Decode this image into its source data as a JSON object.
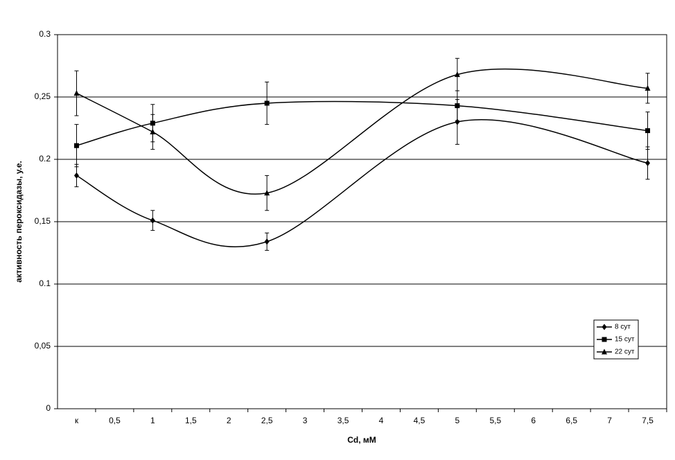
{
  "chart_data": {
    "type": "line",
    "x_label": "Cd, мМ",
    "y_label": "активность пероксидазы, у.е.",
    "x": [
      0,
      1,
      2.5,
      5,
      7.5
    ],
    "xlim": [
      -0.25,
      7.75
    ],
    "xticks": [
      {
        "value": 0,
        "label": "к"
      },
      {
        "value": 0.5,
        "label": "0,5"
      },
      1,
      {
        "value": 1.5,
        "label": "1,5"
      },
      2,
      {
        "value": 2.5,
        "label": "2,5"
      },
      3,
      {
        "value": 3.5,
        "label": "3,5"
      },
      4,
      {
        "value": 4.5,
        "label": "4,5"
      },
      5,
      {
        "value": 5.5,
        "label": "5,5"
      },
      6,
      {
        "value": 6.5,
        "label": "6,5"
      },
      7,
      {
        "value": 7.5,
        "label": "7,5"
      }
    ],
    "ylim": [
      0,
      0.3
    ],
    "yticks": [
      0,
      {
        "value": 0.05,
        "label": "0,05"
      },
      {
        "value": 0.1,
        "label": "0.1"
      },
      {
        "value": 0.15,
        "label": "0,15"
      },
      {
        "value": 0.2,
        "label": "0.2"
      },
      {
        "value": 0.25,
        "label": "0,25"
      },
      {
        "value": 0.3,
        "label": "0.3"
      }
    ],
    "grid": true,
    "smooth": true,
    "legend": "lower right",
    "series": [
      {
        "name": "8 сут",
        "marker": "diamond",
        "color": "#000000",
        "values": [
          0.187,
          0.151,
          0.134,
          0.23,
          0.197
        ],
        "errors": [
          0.009,
          0.008,
          0.007,
          0.018,
          0.013
        ]
      },
      {
        "name": "15 сут",
        "marker": "square",
        "color": "#000000",
        "values": [
          0.211,
          0.229,
          0.245,
          0.243,
          0.223
        ],
        "errors": [
          0.017,
          0.015,
          0.017,
          0.012,
          0.015
        ]
      },
      {
        "name": "22 сут",
        "marker": "triangle",
        "color": "#000000",
        "values": [
          0.253,
          0.222,
          0.173,
          0.268,
          0.257
        ],
        "errors": [
          0.018,
          0.014,
          0.014,
          0.013,
          0.012
        ]
      }
    ]
  }
}
